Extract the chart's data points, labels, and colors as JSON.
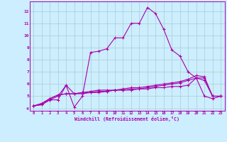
{
  "xlabel": "Windchill (Refroidissement éolien,°C)",
  "bg_color": "#cceeff",
  "line_color": "#aa00aa",
  "grid_color": "#aacccc",
  "xlim": [
    -0.5,
    23.5
  ],
  "ylim": [
    3.8,
    12.8
  ],
  "yticks": [
    4,
    5,
    6,
    7,
    8,
    9,
    10,
    11,
    12
  ],
  "xticks": [
    0,
    1,
    2,
    3,
    4,
    5,
    6,
    7,
    8,
    9,
    10,
    11,
    12,
    13,
    14,
    15,
    16,
    17,
    18,
    19,
    20,
    21,
    22,
    23
  ],
  "series": [
    [
      4.2,
      4.3,
      4.7,
      4.7,
      5.9,
      4.1,
      5.0,
      8.6,
      8.7,
      8.9,
      9.8,
      9.8,
      11.0,
      11.0,
      12.3,
      11.8,
      10.5,
      8.8,
      8.3,
      7.0,
      6.5,
      5.0,
      4.8,
      5.0
    ],
    [
      4.2,
      4.3,
      4.7,
      5.0,
      5.9,
      5.2,
      5.2,
      5.3,
      5.3,
      5.4,
      5.5,
      5.5,
      5.5,
      5.6,
      5.6,
      5.7,
      5.7,
      5.8,
      5.8,
      5.9,
      6.5,
      6.3,
      5.0,
      5.0
    ],
    [
      4.2,
      4.4,
      4.8,
      5.1,
      5.2,
      5.2,
      5.3,
      5.3,
      5.4,
      5.4,
      5.5,
      5.5,
      5.6,
      5.6,
      5.7,
      5.8,
      5.9,
      6.0,
      6.1,
      6.3,
      6.5,
      6.5,
      5.0,
      5.0
    ],
    [
      4.2,
      4.4,
      4.8,
      5.1,
      5.2,
      5.2,
      5.3,
      5.4,
      5.5,
      5.5,
      5.5,
      5.6,
      5.7,
      5.7,
      5.8,
      5.9,
      6.0,
      6.1,
      6.2,
      6.4,
      6.7,
      6.6,
      5.0,
      5.0
    ]
  ]
}
